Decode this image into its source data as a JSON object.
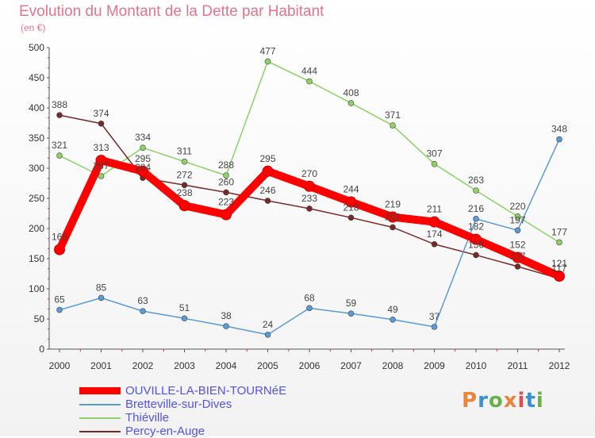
{
  "chart_data": {
    "type": "line",
    "title": "Evolution du Montant de la Dette par Habitant",
    "subtitle": "(en €)",
    "x": [
      "2000",
      "2001",
      "2002",
      "2003",
      "2004",
      "2005",
      "2006",
      "2007",
      "2008",
      "2009",
      "2010",
      "2011",
      "2012"
    ],
    "ylim": [
      0,
      500
    ],
    "yticks": [
      "0",
      "50",
      "100",
      "150",
      "200",
      "250",
      "300",
      "350",
      "400",
      "450",
      "500"
    ],
    "grid": false,
    "legend_position": "bottom-left",
    "series": [
      {
        "name": "OUVILLE-LA-BIEN-TOURNéE",
        "color": "#ff0000",
        "values": [
          165,
          313,
          295,
          238,
          223,
          295,
          270,
          244,
          219,
          211,
          182,
          152,
          121
        ]
      },
      {
        "name": "Bretteville-sur-Dives",
        "color": "#5a9bd5",
        "values": [
          65,
          85,
          63,
          51,
          38,
          24,
          68,
          59,
          49,
          37,
          216,
          197,
          348
        ]
      },
      {
        "name": "Thiéville",
        "color": "#8cd264",
        "values": [
          321,
          287,
          334,
          311,
          288,
          477,
          444,
          408,
          371,
          307,
          263,
          220,
          177
        ]
      },
      {
        "name": "Percy-en-Auge",
        "color": "#782828",
        "values": [
          388,
          374,
          284,
          272,
          260,
          246,
          233,
          218,
          202,
          174,
          156,
          137,
          117
        ]
      }
    ]
  },
  "logo": {
    "text": "Proxiti"
  }
}
